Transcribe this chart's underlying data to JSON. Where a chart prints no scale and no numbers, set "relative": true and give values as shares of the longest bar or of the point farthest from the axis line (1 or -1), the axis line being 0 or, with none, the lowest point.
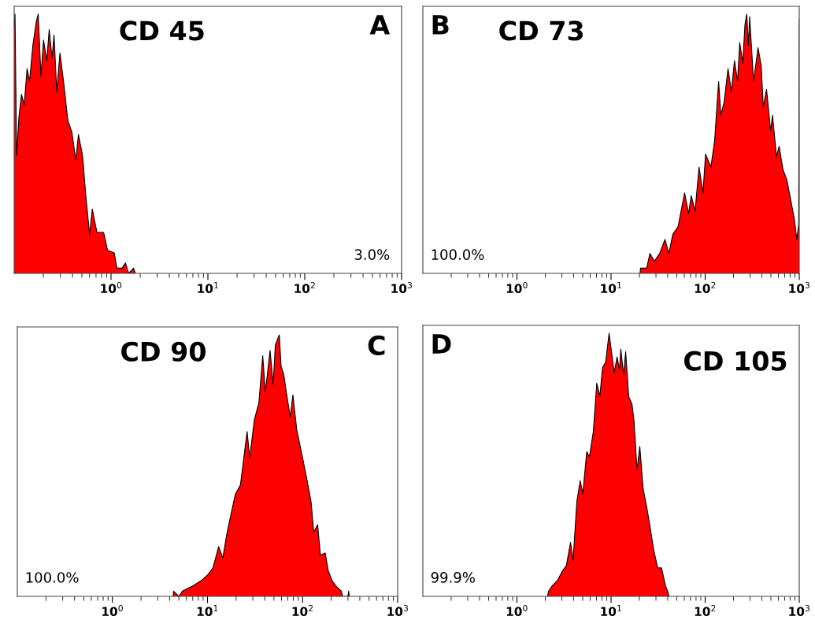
{
  "chart_data": [
    {
      "type": "area",
      "title": "CD 45",
      "annotations": [
        "A",
        "3.0%"
      ],
      "relative": true,
      "log": "x",
      "tick_labels": "x",
      "xlim": [
        0.1,
        1000
      ],
      "xticks": [
        {
          "value": 1,
          "label": "10$^{0}$"
        },
        {
          "value": 10,
          "label": "10$^{1}$"
        },
        {
          "value": 100,
          "label": "10$^{2}$"
        },
        {
          "value": 1000,
          "label": "10$^{3}$"
        }
      ],
      "series": [
        {
          "color": "#ff0000",
          "x": [
            0.1,
            0.102,
            0.106,
            0.112,
            0.119,
            0.127,
            0.136,
            0.144,
            0.156,
            0.169,
            0.177,
            0.189,
            0.201,
            0.217,
            0.23,
            0.246,
            0.258,
            0.275,
            0.297,
            0.326,
            0.358,
            0.394,
            0.433,
            0.461,
            0.508,
            0.55,
            0.601,
            0.64,
            0.716,
            0.839,
            0.921,
            1.08,
            1.15,
            1.3,
            1.41,
            1.52,
            1.71,
            1.78
          ],
          "values": [
            0.95,
            1.0,
            0.455,
            0.604,
            0.69,
            0.65,
            0.79,
            0.74,
            0.88,
            0.97,
            1.0,
            0.76,
            0.9,
            0.82,
            0.94,
            0.83,
            0.92,
            0.7,
            0.85,
            0.73,
            0.59,
            0.545,
            0.436,
            0.535,
            0.455,
            0.297,
            0.149,
            0.248,
            0.158,
            0.158,
            0.089,
            0.079,
            0.02,
            0.02,
            0.04,
            0,
            0.02,
            0
          ]
        }
      ]
    },
    {
      "type": "area",
      "title": "CD 73",
      "annotations": [
        "B",
        "100.0%"
      ],
      "relative": true,
      "log": "x",
      "tick_labels": "x",
      "xlim": [
        0.1,
        1000
      ],
      "xticks": [
        {
          "value": 1,
          "label": "10$^{0}$"
        },
        {
          "value": 10,
          "label": "10$^{1}$"
        },
        {
          "value": 100,
          "label": "10$^{2}$"
        },
        {
          "value": 1000,
          "label": "10$^{3}$"
        }
      ],
      "series": [
        {
          "color": "#ff0000",
          "x": [
            20.3,
            20.6,
            23.9,
            25.9,
            28.9,
            32.9,
            37.4,
            41.2,
            45.3,
            51.5,
            60.5,
            66.7,
            71.1,
            78.2,
            86.1,
            94.8,
            101,
            115,
            126,
            139,
            147,
            159,
            175,
            190,
            205,
            221,
            233,
            251,
            265,
            277,
            288,
            297,
            327,
            365,
            394,
            415,
            449,
            497,
            520,
            573,
            611,
            672,
            739,
            815,
            886,
            944,
            987,
            1000
          ],
          "values": [
            0,
            0.02,
            0.02,
            0.077,
            0.047,
            0.077,
            0.131,
            0.077,
            0.151,
            0.18,
            0.31,
            0.23,
            0.3,
            0.24,
            0.41,
            0.31,
            0.46,
            0.41,
            0.51,
            0.74,
            0.61,
            0.66,
            0.79,
            0.7,
            0.82,
            0.74,
            0.89,
            0.81,
            0.96,
            1.0,
            0.88,
            0.99,
            0.74,
            0.87,
            0.8,
            0.64,
            0.71,
            0.55,
            0.61,
            0.45,
            0.49,
            0.4,
            0.36,
            0.28,
            0.21,
            0.13,
            0.19,
            0.98
          ]
        }
      ]
    },
    {
      "type": "area",
      "title": "CD 90",
      "annotations": [
        "C",
        "100.0%"
      ],
      "relative": true,
      "log": "x",
      "tick_labels": "x",
      "xlim": [
        0.1,
        1000
      ],
      "xticks": [
        {
          "value": 1,
          "label": "10$^{0}$"
        },
        {
          "value": 10,
          "label": "10$^{1}$"
        },
        {
          "value": 100,
          "label": "10$^{2}$"
        },
        {
          "value": 1000,
          "label": "10$^{3}$"
        }
      ],
      "series": [
        {
          "color": "#ff0000",
          "x": [
            4.36,
            4.4,
            5.0,
            5.45,
            7.0,
            8.6,
            10.1,
            11.4,
            13.1,
            14.5,
            15.9,
            17.2,
            19.6,
            22.2,
            26.1,
            27.8,
            31.1,
            34.7,
            38.1,
            40.6,
            45.5,
            49.1,
            51.7,
            56.9,
            59.4,
            63.3,
            67.5,
            74.2,
            79.1,
            86.9,
            98.7,
            112,
            123,
            131,
            144,
            154,
            173,
            186,
            205,
            225,
            256,
            263,
            300,
            305,
            310
          ],
          "values": [
            0,
            0.02,
            0,
            0.02,
            0.04,
            0.06,
            0.083,
            0.108,
            0.19,
            0.147,
            0.235,
            0.294,
            0.39,
            0.426,
            0.63,
            0.53,
            0.675,
            0.74,
            0.92,
            0.78,
            0.94,
            0.81,
            0.96,
            1.0,
            0.88,
            0.85,
            0.78,
            0.685,
            0.77,
            0.636,
            0.54,
            0.44,
            0.36,
            0.245,
            0.274,
            0.157,
            0.166,
            0.098,
            0.059,
            0.039,
            0.02,
            0,
            0,
            0.02,
            0
          ]
        }
      ]
    },
    {
      "type": "area",
      "title": "CD 105",
      "annotations": [
        "D",
        "99.9%"
      ],
      "relative": true,
      "log": "x",
      "tick_labels": "x",
      "xlim": [
        0.1,
        1000
      ],
      "xticks": [
        {
          "value": 1,
          "label": "10$^{0}$"
        },
        {
          "value": 10,
          "label": "10$^{1}$"
        },
        {
          "value": 100,
          "label": "10$^{2}$"
        },
        {
          "value": 1000,
          "label": "10$^{3}$"
        }
      ],
      "series": [
        {
          "color": "#ff0000",
          "x": [
            2.11,
            2.17,
            2.37,
            2.69,
            3.06,
            3.35,
            3.71,
            3.95,
            4.33,
            4.7,
            5.01,
            5.52,
            5.89,
            6.48,
            7.05,
            7.61,
            8.12,
            8.76,
            9.53,
            10.2,
            10.8,
            11.6,
            12.3,
            12.7,
            13.6,
            14.3,
            15.4,
            16.7,
            17.5,
            18.9,
            20.2,
            21.9,
            24.2,
            25.8,
            28.4,
            31.3,
            34.4,
            37.9,
            40.4,
            41.2
          ],
          "values": [
            0,
            0.02,
            0.04,
            0.06,
            0.098,
            0.117,
            0.205,
            0.137,
            0.36,
            0.44,
            0.39,
            0.55,
            0.53,
            0.626,
            0.81,
            0.76,
            0.87,
            0.89,
            1.0,
            0.92,
            0.85,
            0.91,
            0.86,
            0.94,
            0.84,
            0.93,
            0.76,
            0.73,
            0.67,
            0.48,
            0.57,
            0.41,
            0.33,
            0.27,
            0.176,
            0.108,
            0.108,
            0.04,
            0.015,
            0
          ]
        }
      ]
    }
  ]
}
